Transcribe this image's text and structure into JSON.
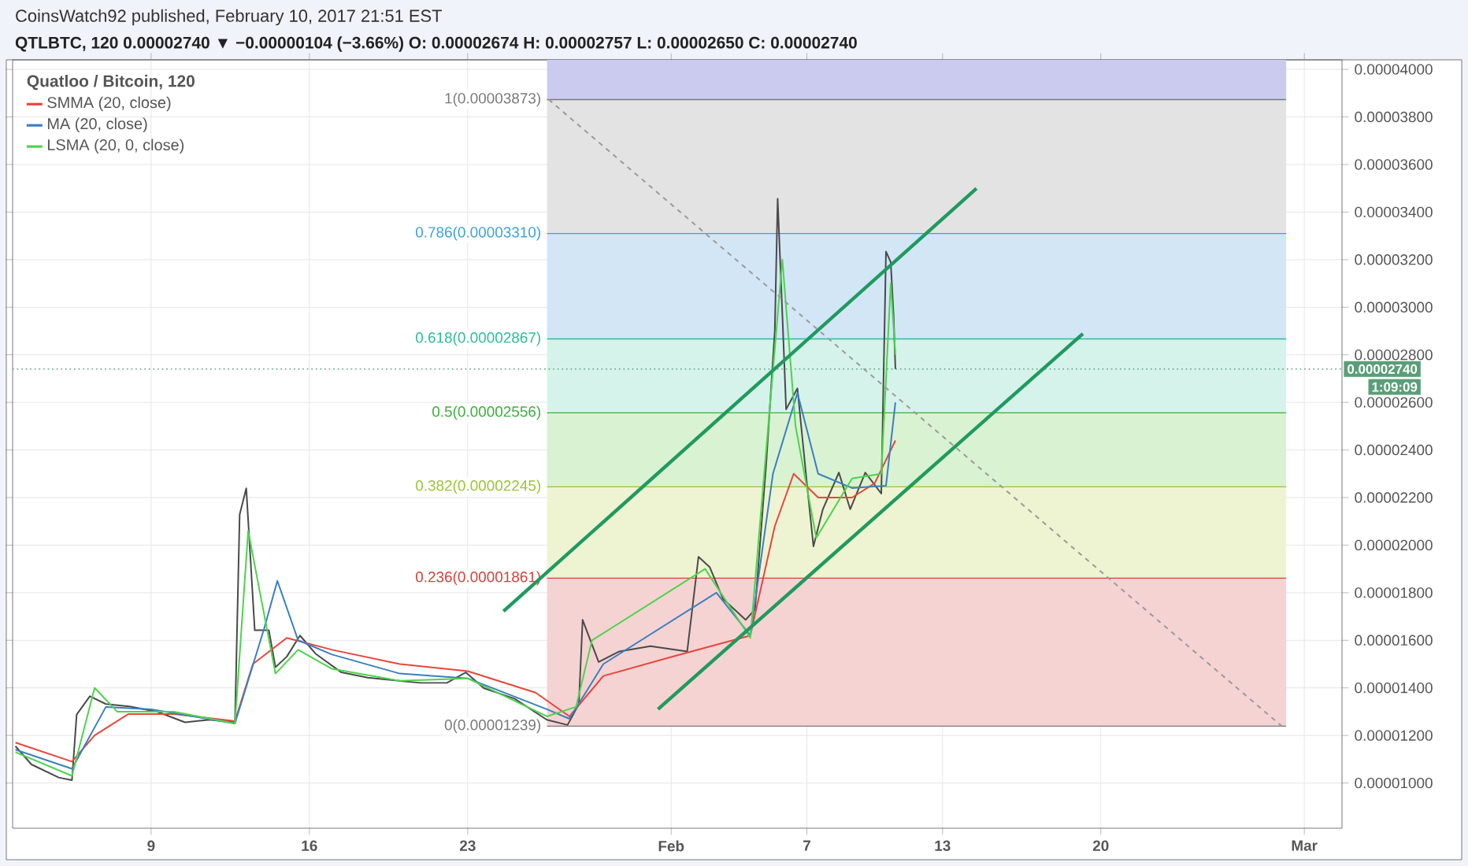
{
  "chart_data": {
    "type": "line",
    "title": "Quatloo / Bitcoin, 120",
    "xlim": [
      "2017-01-02T21:00",
      "2017-03-02T16:00"
    ],
    "ylim": [
      8.1e-06,
      4.04e-05
    ],
    "xticks": [
      {
        "value": "2017-01-09",
        "label": "9"
      },
      {
        "value": "2017-01-16",
        "label": "16"
      },
      {
        "value": "2017-01-23",
        "label": "23"
      },
      {
        "value": "2017-02-01",
        "label": "Feb"
      },
      {
        "value": "2017-02-07",
        "label": "7"
      },
      {
        "value": "2017-02-13",
        "label": "13"
      },
      {
        "value": "2017-02-20",
        "label": "20"
      },
      {
        "value": "2017-03-01",
        "label": "Mar"
      }
    ],
    "yticks": [
      {
        "value": 1e-05,
        "label": "0.00001000"
      },
      {
        "value": 1.2e-05,
        "label": "0.00001200"
      },
      {
        "value": 1.4e-05,
        "label": "0.00001400"
      },
      {
        "value": 1.6e-05,
        "label": "0.00001600"
      },
      {
        "value": 1.8e-05,
        "label": "0.00001800"
      },
      {
        "value": 2e-05,
        "label": "0.00002000"
      },
      {
        "value": 2.2e-05,
        "label": "0.00002200"
      },
      {
        "value": 2.4e-05,
        "label": "0.00002400"
      },
      {
        "value": 2.6e-05,
        "label": "0.00002600"
      },
      {
        "value": 2.8e-05,
        "label": "0.00002800"
      },
      {
        "value": 3e-05,
        "label": "0.00003000"
      },
      {
        "value": 3.2e-05,
        "label": "0.00003200"
      },
      {
        "value": 3.4e-05,
        "label": "0.00003400"
      },
      {
        "value": 3.6e-05,
        "label": "0.00003600"
      },
      {
        "value": 3.8e-05,
        "label": "0.00003800"
      },
      {
        "value": 4e-05,
        "label": "0.00004000"
      }
    ],
    "grid": true,
    "legend": "top left",
    "series": [
      {
        "color": "#4a4a4a",
        "x": [
          "2017-01-03T00:00",
          "2017-01-03T17:00",
          "2017-01-04T22:00",
          "2017-01-05T12:00",
          "2017-01-05T17:00",
          "2017-01-06T07:00",
          "2017-01-07T00:00",
          "2017-01-08T02:00",
          "2017-01-09T07:00",
          "2017-01-10T12:00",
          "2017-01-11T14:00",
          "2017-01-12T17:00",
          "2017-01-12T22:00",
          "2017-01-13T05:00",
          "2017-01-13T14:00",
          "2017-01-14T05:00",
          "2017-01-14T12:00",
          "2017-01-15T00:00",
          "2017-01-15T14:00",
          "2017-01-16T07:00",
          "2017-01-17T10:00",
          "2017-01-18T14:00",
          "2017-01-19T17:00",
          "2017-01-20T22:00",
          "2017-01-22T02:00",
          "2017-01-22T22:00",
          "2017-01-23T17:00",
          "2017-01-25T02:00",
          "2017-01-26T12:00",
          "2017-01-27T10:00",
          "2017-01-27T22:00",
          "2017-01-28T02:00",
          "2017-01-28T19:00",
          "2017-01-29T17:00",
          "2017-01-31T02:00",
          "2017-02-01T17:00",
          "2017-02-02T05:00",
          "2017-02-02T17:00",
          "2017-02-03T07:00",
          "2017-02-04T07:00",
          "2017-02-04T17:00",
          "2017-02-05T05:00",
          "2017-02-05T14:00",
          "2017-02-05T17:00",
          "2017-02-05T22:00",
          "2017-02-06T02:00",
          "2017-02-06T14:00",
          "2017-02-07T00:00",
          "2017-02-07T07:00",
          "2017-02-07T17:00",
          "2017-02-08T10:00",
          "2017-02-08T22:00",
          "2017-02-09T14:00",
          "2017-02-10T07:00",
          "2017-02-10T12:00",
          "2017-02-10T17:00",
          "2017-02-10T20:00",
          "2017-02-10T22:00"
        ],
        "values": [
          1.155e-05,
          1.078e-05,
          1.023e-05,
          1.012e-05,
          1.288e-05,
          1.365e-05,
          1.332e-05,
          1.321e-05,
          1.299e-05,
          1.255e-05,
          1.266e-05,
          1.255e-05,
          2.129e-05,
          2.239e-05,
          1.642e-05,
          1.642e-05,
          1.487e-05,
          1.531e-05,
          1.62e-05,
          1.542e-05,
          1.465e-05,
          1.443e-05,
          1.432e-05,
          1.421e-05,
          1.421e-05,
          1.465e-05,
          1.399e-05,
          1.354e-05,
          1.266e-05,
          1.244e-05,
          1.332e-05,
          1.686e-05,
          1.509e-05,
          1.553e-05,
          1.575e-05,
          1.553e-05,
          1.951e-05,
          1.907e-05,
          1.774e-05,
          1.686e-05,
          1.73e-05,
          2.35e-05,
          2.903e-05,
          3.456e-05,
          2.969e-05,
          2.571e-05,
          2.659e-05,
          2.261e-05,
          1.995e-05,
          2.151e-05,
          2.305e-05,
          2.151e-05,
          2.305e-05,
          2.217e-05,
          3.234e-05,
          3.19e-05,
          2.969e-05,
          2.74e-05
        ]
      },
      {
        "name": "SMMA (20, close)",
        "color": "#e8453c",
        "x": [
          "2017-01-03T00:00",
          "2017-01-05T12:00",
          "2017-01-06T12:00",
          "2017-01-08T00:00",
          "2017-01-10T00:00",
          "2017-01-12T17:00",
          "2017-01-13T12:00",
          "2017-01-15T00:00",
          "2017-01-17T00:00",
          "2017-01-20T00:00",
          "2017-01-23T00:00",
          "2017-01-26T00:00",
          "2017-01-27T12:00",
          "2017-01-29T00:00",
          "2017-02-01T00:00",
          "2017-02-04T12:00",
          "2017-02-05T14:00",
          "2017-02-06T10:00",
          "2017-02-07T12:00",
          "2017-02-09T00:00",
          "2017-02-10T00:00",
          "2017-02-10T22:00"
        ],
        "values": [
          1.17e-05,
          1.09e-05,
          1.2e-05,
          1.29e-05,
          1.29e-05,
          1.26e-05,
          1.5e-05,
          1.61e-05,
          1.56e-05,
          1.5e-05,
          1.47e-05,
          1.38e-05,
          1.28e-05,
          1.45e-05,
          1.53e-05,
          1.62e-05,
          2.08e-05,
          2.3e-05,
          2.2e-05,
          2.2e-05,
          2.26e-05,
          2.44e-05
        ]
      },
      {
        "name": "MA (20, close)",
        "color": "#3a7fc1",
        "x": [
          "2017-01-03T00:00",
          "2017-01-05T12:00",
          "2017-01-07T00:00",
          "2017-01-09T00:00",
          "2017-01-12T17:00",
          "2017-01-14T00:00",
          "2017-01-14T14:00",
          "2017-01-15T12:00",
          "2017-01-17T00:00",
          "2017-01-20T00:00",
          "2017-01-23T00:00",
          "2017-01-26T12:00",
          "2017-01-27T12:00",
          "2017-01-29T00:00",
          "2017-02-03T00:00",
          "2017-02-04T12:00",
          "2017-02-05T12:00",
          "2017-02-06T14:00",
          "2017-02-07T12:00",
          "2017-02-09T00:00",
          "2017-02-10T12:00",
          "2017-02-10T22:00"
        ],
        "values": [
          1.14e-05,
          1.06e-05,
          1.32e-05,
          1.31e-05,
          1.25e-05,
          1.65e-05,
          1.85e-05,
          1.6e-05,
          1.54e-05,
          1.46e-05,
          1.44e-05,
          1.31e-05,
          1.27e-05,
          1.5e-05,
          1.8e-05,
          1.62e-05,
          2.3e-05,
          2.64e-05,
          2.3e-05,
          2.24e-05,
          2.25e-05,
          2.6e-05
        ]
      },
      {
        "name": "LSMA (20, 0, close)",
        "color": "#4cd44c",
        "x": [
          "2017-01-03T00:00",
          "2017-01-05T12:00",
          "2017-01-06T12:00",
          "2017-01-07T12:00",
          "2017-01-10T00:00",
          "2017-01-12T17:00",
          "2017-01-13T07:00",
          "2017-01-14T12:00",
          "2017-01-15T12:00",
          "2017-01-17T00:00",
          "2017-01-20T00:00",
          "2017-01-23T00:00",
          "2017-01-26T12:00",
          "2017-01-27T19:00",
          "2017-01-28T12:00",
          "2017-02-02T12:00",
          "2017-02-04T12:00",
          "2017-02-05T07:00",
          "2017-02-05T22:00",
          "2017-02-06T12:00",
          "2017-02-07T10:00",
          "2017-02-09T00:00",
          "2017-02-10T07:00",
          "2017-02-10T17:00",
          "2017-02-10T22:00"
        ],
        "values": [
          1.13e-05,
          1.03e-05,
          1.4e-05,
          1.3e-05,
          1.3e-05,
          1.25e-05,
          2.06e-05,
          1.46e-05,
          1.56e-05,
          1.48e-05,
          1.43e-05,
          1.44e-05,
          1.28e-05,
          1.32e-05,
          1.6e-05,
          1.9e-05,
          1.61e-05,
          2.5e-05,
          3.2e-05,
          2.5e-05,
          2.03e-05,
          2.28e-05,
          2.3e-05,
          3.1e-05,
          2.8e-05
        ]
      },
      {
        "color": "#1f9a5f",
        "x": [
          "2017-01-24T14:00",
          "2017-02-14T12:00"
        ],
        "values": [
          1.722e-05,
          3.499e-05
        ]
      },
      {
        "color": "#1f9a5f",
        "x": [
          "2017-01-31T10:00",
          "2017-02-19T05:00"
        ],
        "values": [
          1.31e-05,
          2.889e-05
        ]
      },
      {
        "color": "#9a9a9a",
        "line_style": "dashed",
        "x": [
          "2017-01-26T14:00",
          "2017-02-28T00:00"
        ],
        "values": [
          3.873e-05,
          1.239e-05
        ]
      }
    ],
    "ref_lines": [
      {
        "axis": "y",
        "value": 3.873e-05,
        "label": "1(0.00003873)",
        "color": "#7a7a7a"
      },
      {
        "axis": "y",
        "value": 3.31e-05,
        "label": "0.786(0.00003310)",
        "color": "#3aa3d9"
      },
      {
        "axis": "y",
        "value": 2.867e-05,
        "label": "0.618(0.00002867)",
        "color": "#2dbd9a"
      },
      {
        "axis": "y",
        "value": 2.556e-05,
        "label": "0.5(0.00002556)",
        "color": "#3ab03a"
      },
      {
        "axis": "y",
        "value": 2.245e-05,
        "label": "0.382(0.00002245)",
        "color": "#9bc431"
      },
      {
        "axis": "y",
        "value": 1.861e-05,
        "label": "0.236(0.00001861)",
        "color": "#d9403a"
      },
      {
        "axis": "y",
        "value": 1.239e-05,
        "label": "0(0.00001239)",
        "color": "#7a7a7a"
      },
      {
        "axis": "y",
        "value": 2.74e-05,
        "label": "0.00002740",
        "color": "#5a9e78",
        "line_style": "dotted"
      }
    ],
    "bands": [
      {
        "axis": "y",
        "from": 3.873e-05,
        "to": 4.04e-05,
        "color": "#cbcbf0"
      },
      {
        "axis": "y",
        "from": 3.31e-05,
        "to": 3.873e-05,
        "color": "#e3e3e3"
      },
      {
        "axis": "y",
        "from": 2.867e-05,
        "to": 3.31e-05,
        "color": "#d2e6f6"
      },
      {
        "axis": "y",
        "from": 2.556e-05,
        "to": 2.867e-05,
        "color": "#d5f3ea"
      },
      {
        "axis": "y",
        "from": 2.245e-05,
        "to": 2.556e-05,
        "color": "#d9f2d2"
      },
      {
        "axis": "y",
        "from": 1.861e-05,
        "to": 2.245e-05,
        "color": "#eef3d2"
      },
      {
        "axis": "y",
        "from": 1.239e-05,
        "to": 1.861e-05,
        "color": "#f5d3d3"
      }
    ],
    "annotations": [
      "CoinsWatch92 published, February 10, 2017 21:51 EST",
      "QTLBTC, 120 0.00002740 ▼ −0.00000104 (−3.66%) O: 0.00002674 H: 0.00002757 L: 0.00002650 C: 0.00002740",
      "1:09:09"
    ]
  }
}
